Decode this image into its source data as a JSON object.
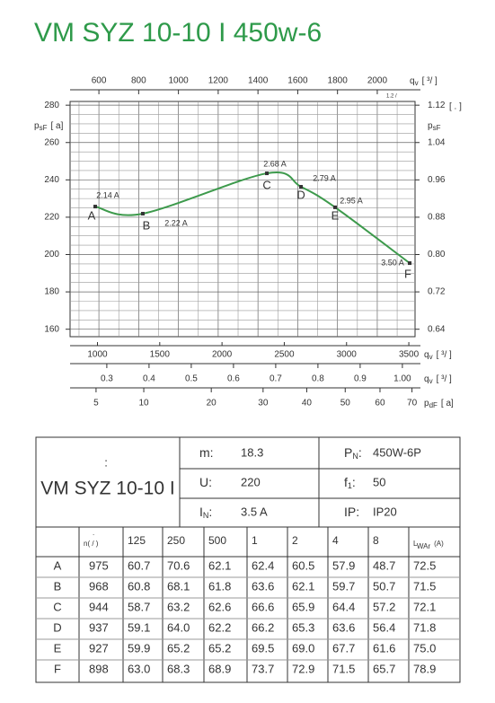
{
  "chart_data": {
    "type": "line",
    "title": "VM SYZ 10-10 I 450w-6",
    "x": [
      982,
      1364,
      2360,
      2634,
      2908,
      3507
    ],
    "xlim": [
      780,
      3550
    ],
    "xticks": [
      1000,
      1500,
      2000,
      2500,
      3000,
      3500
    ],
    "xlabel": {
      "main": "q",
      "sub": "v",
      "unit": "[  ³/  ]"
    },
    "x2lim": [
      455,
      2190
    ],
    "x2ticks": [
      600,
      800,
      1000,
      1200,
      1400,
      1600,
      1800,
      2000
    ],
    "x2label": {
      "main": "q",
      "sub": "v",
      "unit": "[  ³/  ]"
    },
    "x2note": "1.2 /",
    "x3lim": [
      0.213,
      1.03
    ],
    "x3ticks": [
      0.3,
      0.4,
      0.5,
      0.6,
      0.7,
      0.8,
      0.9,
      {
        "value": 1,
        "label": "1.00"
      }
    ],
    "x3label": {
      "main": "q",
      "sub": "v",
      "unit": "[  ³/  ]"
    },
    "x4lim": [
      3,
      71
    ],
    "x4ticks": [
      5,
      10,
      20,
      30,
      40,
      50,
      60,
      70
    ],
    "x4scale": "sqrt",
    "x4label": {
      "main": "p",
      "sub": "dF",
      "unit": "[   a]"
    },
    "ylim": [
      156,
      282
    ],
    "yticks": [
      160,
      180,
      200,
      220,
      240,
      260,
      280
    ],
    "ylabel": {
      "main": "p",
      "sub": "sF",
      "unit": "[   a]"
    },
    "y2lim": [
      0.624,
      1.128
    ],
    "y2ticks": [
      0.64,
      0.72,
      {
        "value": 0.8,
        "label": "0.80"
      },
      0.88,
      0.96,
      1.04,
      1.12
    ],
    "y2label": {
      "main": "p",
      "sub": "sF"
    },
    "y2unit": "[      .   ]",
    "grid": true,
    "series": [
      {
        "color": "#3d9a4c",
        "values": [
          225.7,
          221.9,
          243.5,
          236.3,
          225.3,
          195.4
        ],
        "point_labels": [
          "A",
          "B",
          "C",
          "D",
          "E",
          "F"
        ],
        "annotations": [
          "2.14 A",
          "2.22 A",
          "2.68 A",
          "2.79 A",
          "2.95 A",
          "3.50 A"
        ]
      }
    ]
  },
  "specs": {
    "note": ":",
    "name": "VM SYZ 10-10 I",
    "items": [
      [
        {
          "label": "m:",
          "value": "18.3"
        },
        {
          "label": "P",
          "sub": "N",
          "suffix": ":",
          "value": "450W-6P"
        }
      ],
      [
        {
          "label": "U:",
          "value": "220"
        },
        {
          "label": "f",
          "sub": "1",
          "suffix": ":",
          "value": "50"
        }
      ],
      [
        {
          "label": "I",
          "sub": "N",
          "suffix": ":",
          "value": "3.5  A"
        },
        {
          "label": "IP:",
          "value": "IP20"
        }
      ]
    ]
  },
  "noise_table": {
    "header": [
      {
        "top": ".",
        "main": "n(  /  )"
      },
      "125",
      "250",
      "500",
      "1",
      "2",
      "4",
      "8",
      {
        "main": "L",
        "sub": "WAr",
        "unit": "(A)"
      }
    ],
    "rows": [
      {
        "label": "A",
        "cells": [
          "975",
          "60.7",
          "70.6",
          "62.1",
          "62.4",
          "60.5",
          "57.9",
          "48.7",
          "72.5"
        ]
      },
      {
        "label": "B",
        "cells": [
          "968",
          "60.8",
          "68.1",
          "61.8",
          "63.6",
          "62.1",
          "59.7",
          "50.7",
          "71.5"
        ]
      },
      {
        "label": "C",
        "cells": [
          "944",
          "58.7",
          "63.2",
          "62.6",
          "66.6",
          "65.9",
          "64.4",
          "57.2",
          "72.1"
        ]
      },
      {
        "label": "D",
        "cells": [
          "937",
          "59.1",
          "64.0",
          "62.2",
          "66.2",
          "65.3",
          "63.6",
          "56.4",
          "71.8"
        ]
      },
      {
        "label": "E",
        "cells": [
          "927",
          "59.9",
          "65.2",
          "65.2",
          "69.5",
          "69.0",
          "67.7",
          "61.6",
          "75.0"
        ]
      },
      {
        "label": "F",
        "cells": [
          "898",
          "63.0",
          "68.3",
          "68.9",
          "73.7",
          "72.9",
          "71.5",
          "65.7",
          "78.9"
        ]
      }
    ]
  }
}
